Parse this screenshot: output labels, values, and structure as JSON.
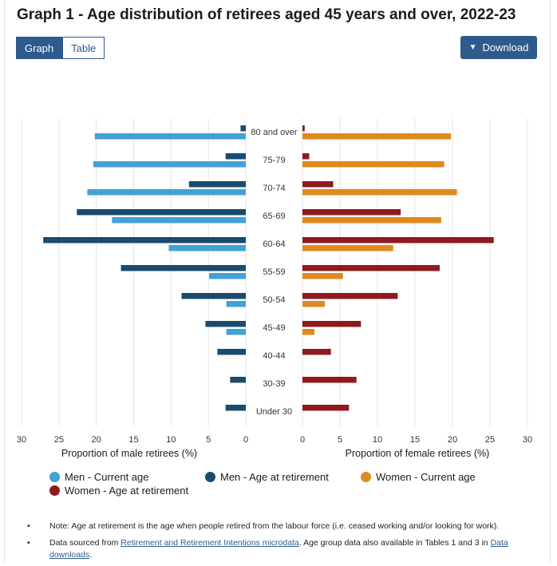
{
  "title": "Graph 1 - Age distribution of retirees aged 45 years and over, 2022-23",
  "tabs": [
    {
      "label": "Graph",
      "active": true
    },
    {
      "label": "Table",
      "active": false
    }
  ],
  "download": {
    "label": "Download",
    "icon": "chevron-down-icon"
  },
  "colors": {
    "men_current": "#41a1d8",
    "men_retirement": "#1a4b6e",
    "women_current": "#e0891f",
    "women_retirement": "#8f1a1e"
  },
  "chart_data": {
    "type": "bar",
    "orientation": "horizontal",
    "layout": "population-pyramid",
    "categories": [
      "80 and over",
      "75-79",
      "70-74",
      "65-69",
      "60-64",
      "55-59",
      "50-54",
      "45-49",
      "40-44",
      "30-39",
      "Under 30"
    ],
    "panels": [
      {
        "side": "left",
        "xlabel": "Proportion of male retirees (%)",
        "xlim": [
          0,
          30
        ],
        "ticks": [
          30,
          25,
          20,
          15,
          10,
          5,
          0
        ],
        "series": [
          {
            "name": "Men - Age at retirement",
            "color": "#1a4b6e",
            "values": [
              0.7,
              2.7,
              7.6,
              22.6,
              27.1,
              16.7,
              8.6,
              5.4,
              3.8,
              2.1,
              2.7
            ]
          },
          {
            "name": "Men - Current age",
            "color": "#41a1d8",
            "values": [
              20.2,
              20.4,
              21.2,
              17.9,
              10.3,
              4.9,
              2.6,
              2.6,
              null,
              null,
              null
            ]
          }
        ]
      },
      {
        "side": "right",
        "xlabel": "Proportion of female retirees (%)",
        "xlim": [
          0,
          30
        ],
        "ticks": [
          0,
          5,
          10,
          15,
          20,
          25,
          30
        ],
        "series": [
          {
            "name": "Women - Age at retirement",
            "color": "#8f1a1e",
            "values": [
              0.3,
              0.9,
              4.1,
              13.1,
              25.5,
              18.3,
              12.7,
              7.8,
              3.8,
              7.2,
              6.2
            ]
          },
          {
            "name": "Women - Current age",
            "color": "#e0891f",
            "values": [
              19.8,
              18.9,
              20.6,
              18.5,
              12.1,
              5.4,
              3.0,
              1.6,
              null,
              null,
              null
            ]
          }
        ]
      }
    ],
    "grid": true
  },
  "legend": [
    {
      "label": "Men - Current age",
      "color": "#41a1d8"
    },
    {
      "label": "Men - Age at retirement",
      "color": "#1a4b6e"
    },
    {
      "label": "Women - Current age",
      "color": "#e0891f"
    },
    {
      "label": "Women - Age at retirement",
      "color": "#8f1a1e"
    }
  ],
  "notes": {
    "note1": "Note: Age at retirement is the age when people retired from the labour force (i.e. ceased working and/or looking for work).",
    "note2_prefix": "Data sourced from ",
    "note2_link1": "Retirement and Retirement Intentions microdata",
    "note2_middle": ". Age group data also available in Tables 1 and 3 in ",
    "note2_link2": "Data downloads",
    "note2_suffix": "."
  }
}
